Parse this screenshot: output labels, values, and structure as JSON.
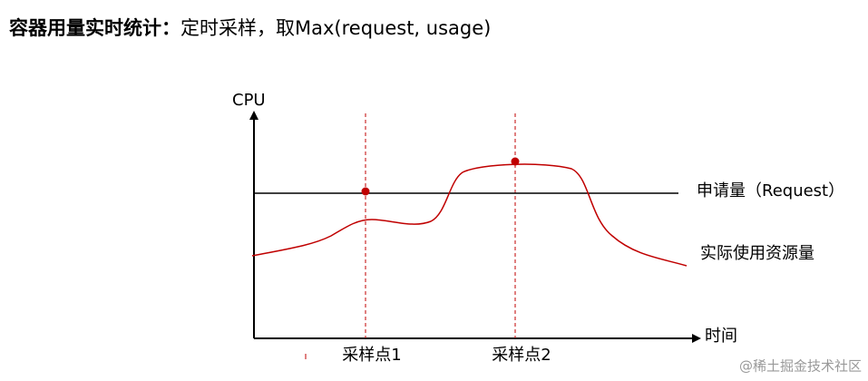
{
  "header": {
    "title_bold": "容器用量实时统计：",
    "title_rest": "定时采样，取Max(request, usage)"
  },
  "axes": {
    "y_label": "CPU",
    "x_label": "时间"
  },
  "lines": {
    "request": "申请量（Request）",
    "usage": "实际使用资源量"
  },
  "samples": [
    "采样点1",
    "采样点2"
  ],
  "watermark": "@稀土掘金技术社区"
}
